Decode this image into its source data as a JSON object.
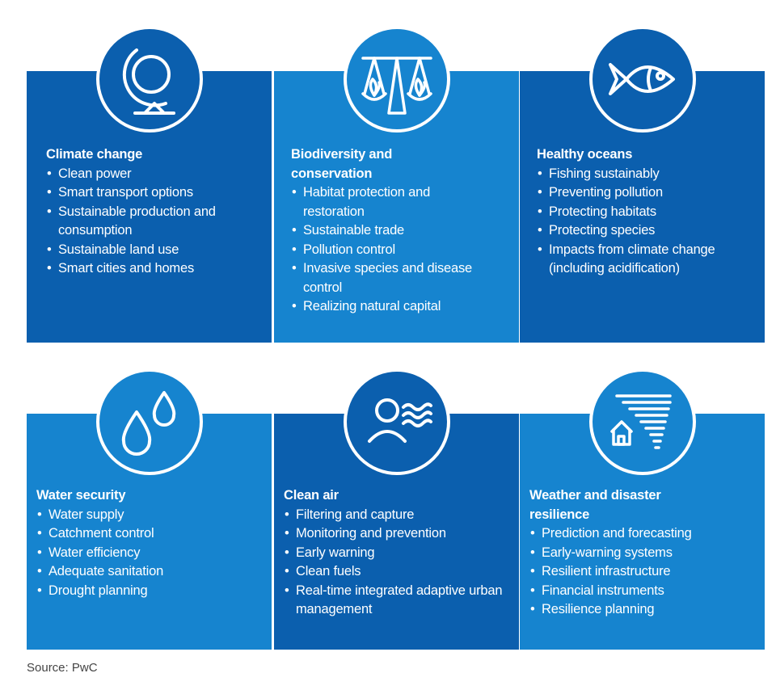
{
  "panels": [
    {
      "title": "Climate change",
      "icon": "globe-icon",
      "items": [
        "Clean power",
        "Smart transport options",
        "Sustainable production and consumption",
        "Sustainable land use",
        "Smart cities and homes"
      ]
    },
    {
      "title": "Biodiversity and conservation",
      "icon": "balance-scale-icon",
      "items": [
        "Habitat protection and restoration",
        "Sustainable trade",
        "Pollution control",
        "Invasive species and disease control",
        "Realizing natural capital"
      ]
    },
    {
      "title": "Healthy oceans",
      "icon": "fish-icon",
      "items": [
        "Fishing sustainably",
        "Preventing pollution",
        "Protecting habitats",
        "Protecting species",
        "Impacts from climate change (including acidification)"
      ]
    },
    {
      "title": "Water security",
      "icon": "water-drops-icon",
      "items": [
        "Water supply",
        "Catchment control",
        "Water efficiency",
        "Adequate sanitation",
        "Drought planning"
      ]
    },
    {
      "title": "Clean air",
      "icon": "person-air-icon",
      "items": [
        "Filtering and capture",
        "Monitoring and  prevention",
        "Early warning",
        "Clean fuels",
        "Real-time integrated adaptive urban management"
      ]
    },
    {
      "title": "Weather and disaster resilience",
      "icon": "tornado-house-icon",
      "items": [
        "Prediction and forecasting",
        "Early-warning systems",
        "Resilient infrastructure",
        "Financial instruments",
        "Resilience planning"
      ]
    }
  ],
  "source": "Source: PwC",
  "colors": {
    "dark": "#0b5fae",
    "light": "#1684cf"
  }
}
